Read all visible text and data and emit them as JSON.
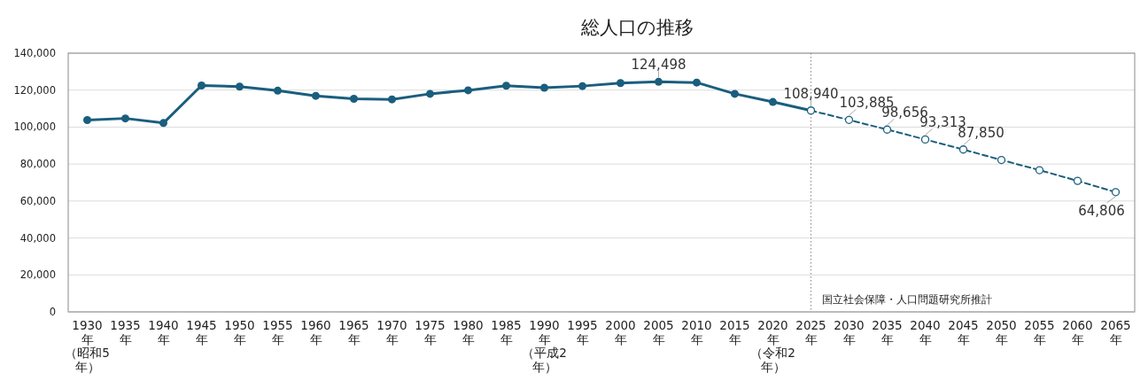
{
  "chart_data": {
    "type": "line",
    "title": "総人口の推移",
    "categories": [
      "1930年（昭和5年）",
      "1935年",
      "1940年",
      "1945年",
      "1950年",
      "1955年",
      "1960年",
      "1965年",
      "1970年",
      "1975年",
      "1980年",
      "1985年",
      "1990年（平成2年）",
      "1995年",
      "2000年",
      "2005年",
      "2010年",
      "2015年",
      "2020年（令和2年）",
      "2025年",
      "2030年",
      "2035年",
      "2040年",
      "2045年",
      "2050年",
      "2055年",
      "2060年",
      "2065年"
    ],
    "series": [
      {
        "color": "#1a5e7e",
        "marker": "circle",
        "line_style": "solid",
        "values": [
          103800,
          104700,
          102200,
          122500,
          121900,
          119700,
          116900,
          115300,
          115000,
          118000,
          119900,
          122400,
          121300,
          122200,
          123800,
          124498,
          124100,
          118000,
          113600,
          108940,
          null,
          null,
          null,
          null,
          null,
          null,
          null,
          null
        ],
        "value_labels": [
          null,
          null,
          null,
          null,
          null,
          null,
          null,
          null,
          null,
          null,
          null,
          null,
          null,
          null,
          null,
          "124,498",
          null,
          null,
          null,
          "108,940",
          null,
          null,
          null,
          null,
          null,
          null,
          null,
          null
        ]
      },
      {
        "color": "#1a5e7e",
        "marker": "open circle",
        "line_style": "dashed",
        "values": [
          null,
          null,
          null,
          null,
          null,
          null,
          null,
          null,
          null,
          null,
          null,
          null,
          null,
          null,
          null,
          null,
          null,
          null,
          null,
          108940,
          103885,
          98656,
          93313,
          87850,
          82200,
          76700,
          70900,
          64806
        ],
        "value_labels": [
          null,
          null,
          null,
          null,
          null,
          null,
          null,
          null,
          null,
          null,
          null,
          null,
          null,
          null,
          null,
          null,
          null,
          null,
          null,
          null,
          "103,885",
          "98,656",
          "93,313",
          "87,850",
          null,
          null,
          null,
          "64,806"
        ]
      }
    ],
    "ylim": [
      0,
      140000
    ],
    "yticks": [
      {
        "value": 0,
        "label": "0"
      },
      {
        "value": 20000,
        "label": "20,000"
      },
      {
        "value": 40000,
        "label": "40,000"
      },
      {
        "value": 60000,
        "label": "60,000"
      },
      {
        "value": 80000,
        "label": "80,000"
      },
      {
        "value": 100000,
        "label": "100,000"
      },
      {
        "value": 120000,
        "label": "120,000"
      },
      {
        "value": 140000,
        "label": "140,000"
      }
    ],
    "grid": "y",
    "ref_lines": [
      {
        "axis": "x",
        "value": "2025年",
        "label": "国立社会保障・人口問題研究所推計",
        "color": "#888888",
        "line_style": "dotted"
      }
    ]
  }
}
